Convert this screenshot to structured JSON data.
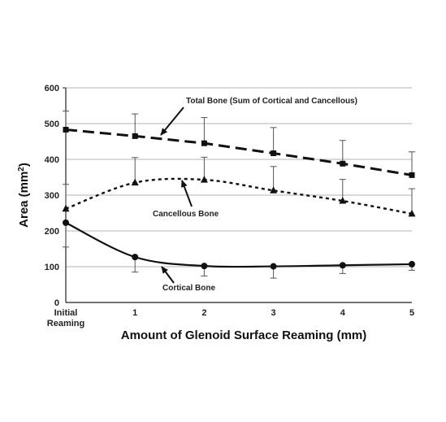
{
  "chart_data": {
    "type": "line",
    "title": "",
    "xlabel": "Amount of Glenoid Surface Reaming (mm)",
    "ylabel_main": "Area (mm",
    "ylabel_sup": "2",
    "ylabel_close": ")",
    "x": [
      0,
      1,
      2,
      3,
      4,
      5
    ],
    "x_tick_labels": [
      [
        "Initial",
        "Reaming"
      ],
      [
        "1"
      ],
      [
        "2"
      ],
      [
        "3"
      ],
      [
        "4"
      ],
      [
        "5"
      ]
    ],
    "ylim": [
      0,
      600
    ],
    "yticks": [
      0,
      100,
      200,
      300,
      400,
      500,
      600
    ],
    "grid": "horizontal",
    "legend": "none",
    "series": [
      {
        "name": "Total Bone (Sum of Cortical and Cancellous)",
        "marker": "square",
        "line_style": "long-dash",
        "values": [
          483,
          465,
          445,
          417,
          388,
          356
        ],
        "error_plus": [
          52,
          62,
          72,
          72,
          65,
          65
        ],
        "color": "#111111"
      },
      {
        "name": "Cancellous Bone",
        "marker": "triangle",
        "line_style": "short-dash",
        "values": [
          262,
          335,
          343,
          313,
          284,
          248
        ],
        "error_plus": [
          68,
          70,
          63,
          67,
          60,
          70
        ],
        "color": "#111111"
      },
      {
        "name": "Cortical Bone",
        "marker": "circle",
        "line_style": "solid",
        "values": [
          223,
          127,
          102,
          101,
          104,
          107
        ],
        "error_plus": [
          0,
          0,
          0,
          0,
          0,
          0
        ],
        "error_minus": [
          68,
          42,
          28,
          33,
          23,
          17
        ],
        "color": "#111111"
      }
    ],
    "annotations": [
      {
        "text": "Total Bone (Sum of Cortical and Cancellous)",
        "series": 0
      },
      {
        "text": "Cancellous Bone",
        "series": 1
      },
      {
        "text": "Cortical Bone",
        "series": 2
      }
    ]
  }
}
